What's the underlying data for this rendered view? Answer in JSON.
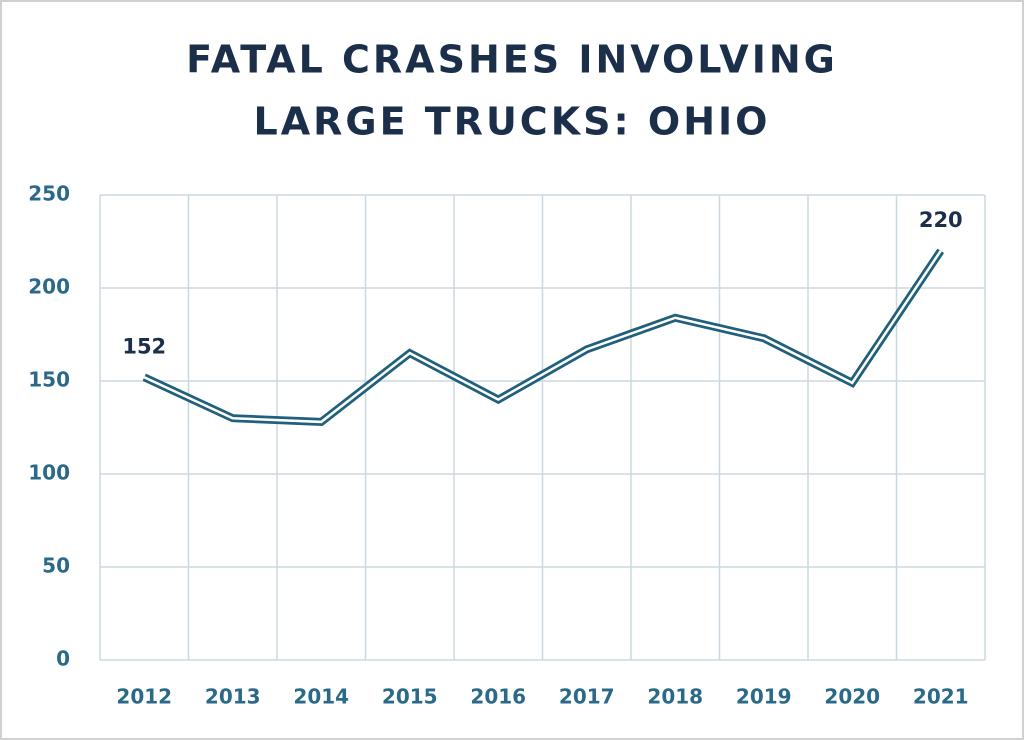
{
  "chart_data": {
    "type": "line",
    "title": [
      "FATAL CRASHES INVOLVING",
      "LARGE TRUCKS: OHIO"
    ],
    "categories": [
      "2012",
      "2013",
      "2014",
      "2015",
      "2016",
      "2017",
      "2018",
      "2019",
      "2020",
      "2021"
    ],
    "values": [
      152,
      130,
      128,
      165,
      140,
      167,
      184,
      173,
      149,
      220
    ],
    "value_labels": [
      "152",
      null,
      null,
      null,
      null,
      null,
      null,
      null,
      null,
      "220"
    ],
    "color": "#21607c",
    "ylim": [
      0,
      250
    ],
    "yticks": [
      0,
      50,
      100,
      150,
      200,
      250
    ],
    "grid": true
  }
}
